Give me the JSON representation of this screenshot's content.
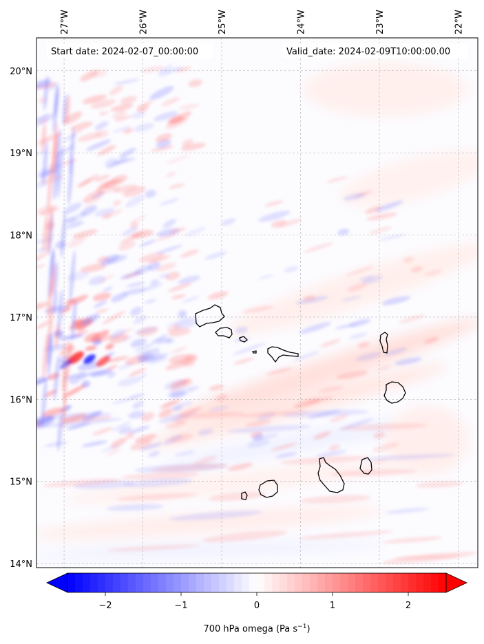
{
  "header": {
    "start_date": "Start date: 2024-02-07_00:00:00",
    "valid_date": "Valid_date: 2024-02-09T10:00:00.00"
  },
  "map": {
    "lon_labels": [
      "27°W",
      "26°W",
      "25°W",
      "24°W",
      "23°W",
      "22°W"
    ],
    "lat_labels": [
      "20°N",
      "19°N",
      "18°N",
      "17°N",
      "16°N",
      "15°N",
      "14°N"
    ],
    "lon_values": [
      -27,
      -26,
      -25,
      -24,
      -23,
      -22
    ],
    "lat_values": [
      20,
      19,
      18,
      17,
      16,
      15,
      14
    ],
    "lon_range": [
      -27.35,
      -21.75
    ],
    "lat_range": [
      13.95,
      20.4
    ],
    "islands": [
      "Santo Antão",
      "São Vicente",
      "Santa Luzia",
      "Branco",
      "São Nicolau",
      "Sal",
      "Boa Vista",
      "Brava",
      "Fogo",
      "Santiago",
      "Maio"
    ]
  },
  "colorbar": {
    "title": "700 hPa omega (Pa s",
    "title_sup": "−1",
    "title_end": ")",
    "tick_labels": [
      "−2",
      "−1",
      "0",
      "1",
      "2"
    ],
    "tick_values": [
      -2,
      -1,
      0,
      1,
      2
    ],
    "range": [
      -2.5,
      2.5
    ],
    "colormap": "bwr",
    "extend": "both"
  },
  "colors": {
    "negative": "#0000ff",
    "neutral": "#ffffff",
    "positive": "#ff0000",
    "coastline": "#000000",
    "grid": "#b0b0b0"
  }
}
